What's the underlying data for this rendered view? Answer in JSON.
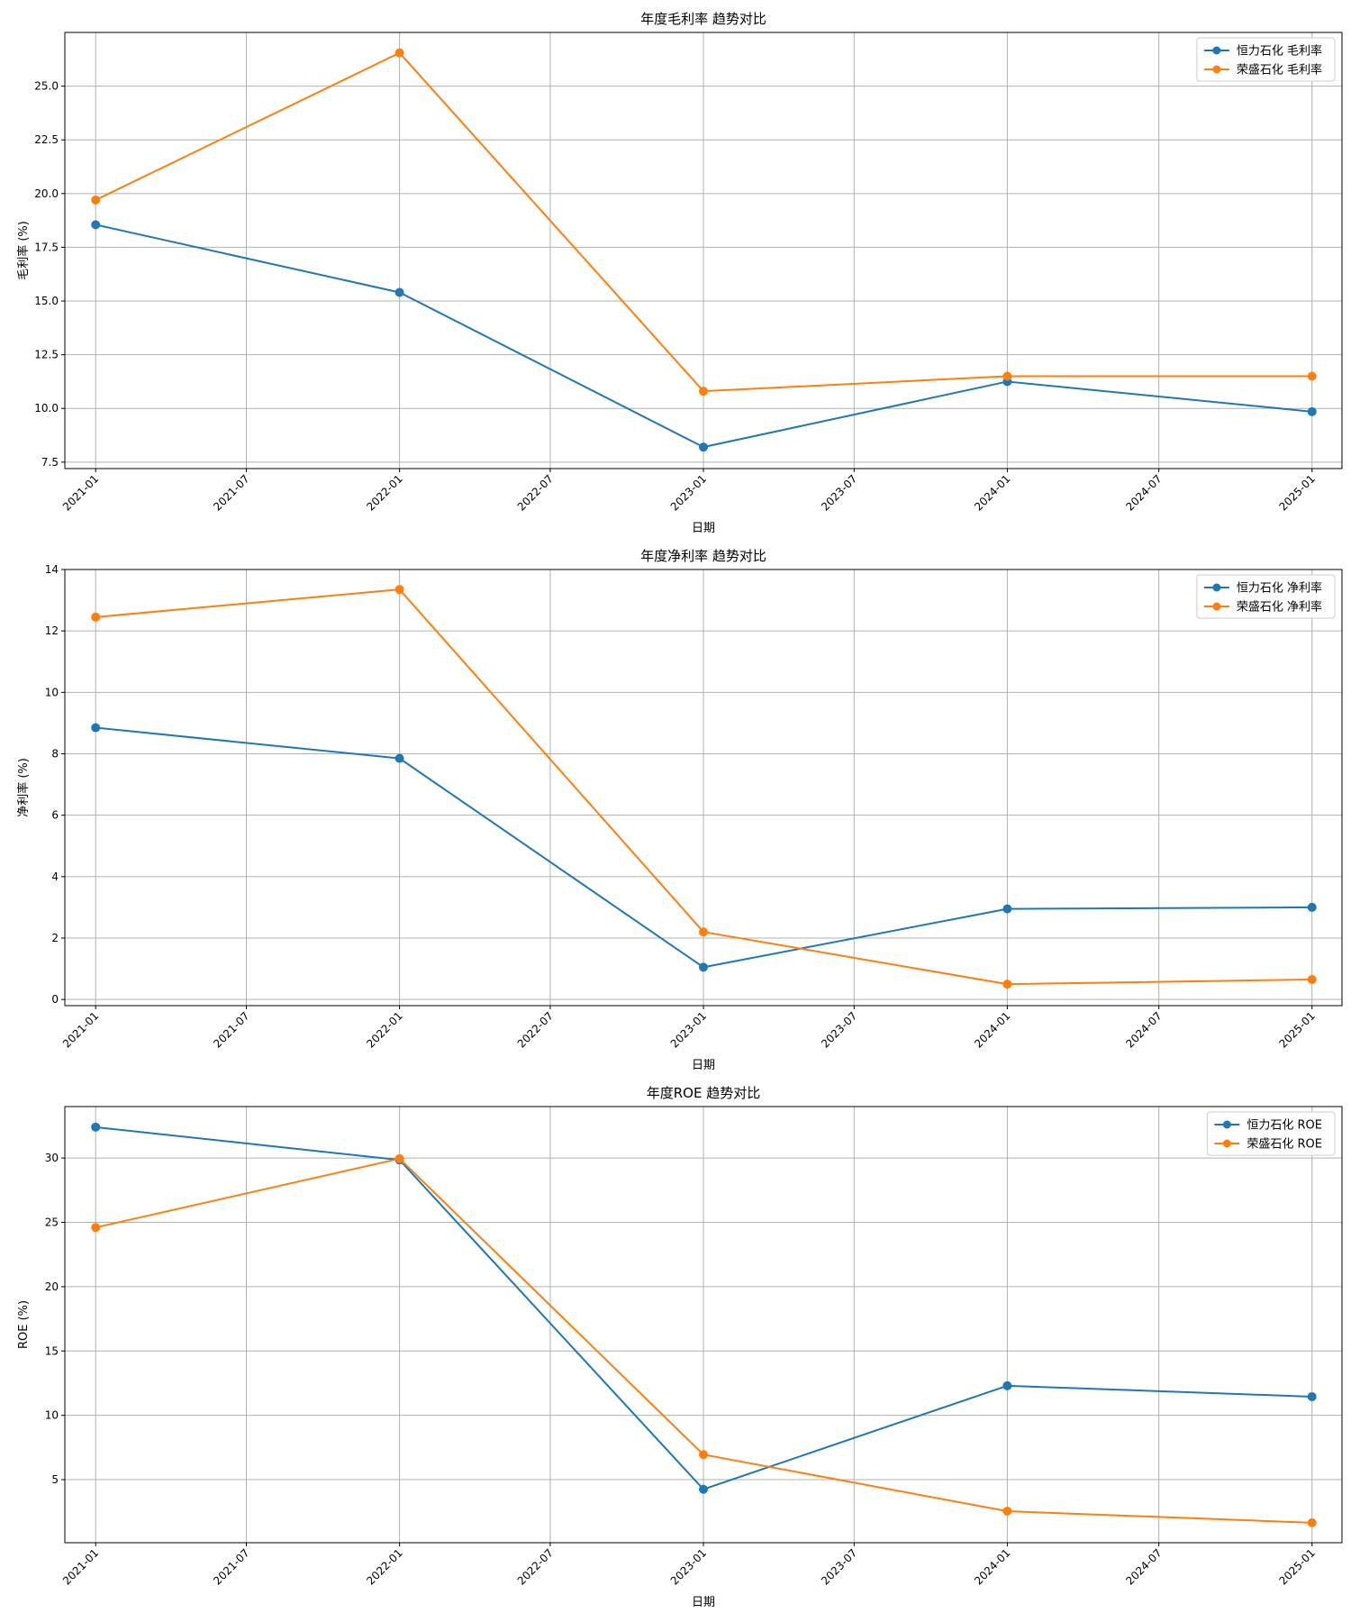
{
  "colors": {
    "series_a": "#1f77b4",
    "series_b": "#ff7f0e",
    "grid": "#b0b0b0"
  },
  "x_ticks": [
    "2021-01",
    "2021-07",
    "2022-01",
    "2022-07",
    "2023-01",
    "2023-07",
    "2024-01",
    "2024-07",
    "2025-01"
  ],
  "chart_data": [
    {
      "type": "line",
      "title": "年度毛利率 趋势对比",
      "xlabel": "日期",
      "ylabel": "毛利率 (%)",
      "x": [
        "2021-01-01",
        "2022-01-01",
        "2023-01-01",
        "2024-01-01",
        "2025-01-01"
      ],
      "xlim": [
        "2020-11-25",
        "2025-02-06"
      ],
      "ylim": [
        7.2,
        27.5
      ],
      "yticks": [
        7.5,
        10.0,
        12.5,
        15.0,
        17.5,
        20.0,
        22.5,
        25.0
      ],
      "ytick_labels": [
        "7.5",
        "10.0",
        "12.5",
        "15.0",
        "17.5",
        "20.0",
        "22.5",
        "25.0"
      ],
      "grid": true,
      "legend": "top-right",
      "series": [
        {
          "name": "恒力石化 毛利率",
          "values": [
            18.55,
            15.4,
            8.2,
            11.25,
            9.85
          ]
        },
        {
          "name": "荣盛石化 毛利率",
          "values": [
            19.7,
            26.55,
            10.8,
            11.5,
            11.5
          ]
        }
      ]
    },
    {
      "type": "line",
      "title": "年度净利率 趋势对比",
      "xlabel": "日期",
      "ylabel": "净利率 (%)",
      "x": [
        "2021-01-01",
        "2022-01-01",
        "2023-01-01",
        "2024-01-01",
        "2025-01-01"
      ],
      "xlim": [
        "2020-11-25",
        "2025-02-06"
      ],
      "ylim": [
        -0.2,
        14.0
      ],
      "yticks": [
        0,
        2,
        4,
        6,
        8,
        10,
        12,
        14
      ],
      "ytick_labels": [
        "0",
        "2",
        "4",
        "6",
        "8",
        "10",
        "12",
        "14"
      ],
      "grid": true,
      "legend": "top-right",
      "series": [
        {
          "name": "恒力石化 净利率",
          "values": [
            8.85,
            7.85,
            1.05,
            2.95,
            3.0
          ]
        },
        {
          "name": "荣盛石化 净利率",
          "values": [
            12.45,
            13.35,
            2.2,
            0.5,
            0.65
          ]
        }
      ]
    },
    {
      "type": "line",
      "title": "年度ROE 趋势对比",
      "xlabel": "日期",
      "ylabel": "ROE (%)",
      "x": [
        "2021-01-01",
        "2022-01-01",
        "2023-01-01",
        "2024-01-01",
        "2025-01-01"
      ],
      "xlim": [
        "2020-11-25",
        "2025-02-06"
      ],
      "ylim": [
        0.1,
        34.0
      ],
      "yticks": [
        5,
        10,
        15,
        20,
        25,
        30
      ],
      "ytick_labels": [
        "5",
        "10",
        "15",
        "20",
        "25",
        "30"
      ],
      "grid": true,
      "legend": "top-right",
      "series": [
        {
          "name": "恒力石化 ROE",
          "values": [
            32.4,
            29.85,
            4.25,
            12.3,
            11.45
          ]
        },
        {
          "name": "荣盛石化 ROE",
          "values": [
            24.6,
            29.95,
            6.95,
            2.55,
            1.65
          ]
        }
      ]
    }
  ]
}
